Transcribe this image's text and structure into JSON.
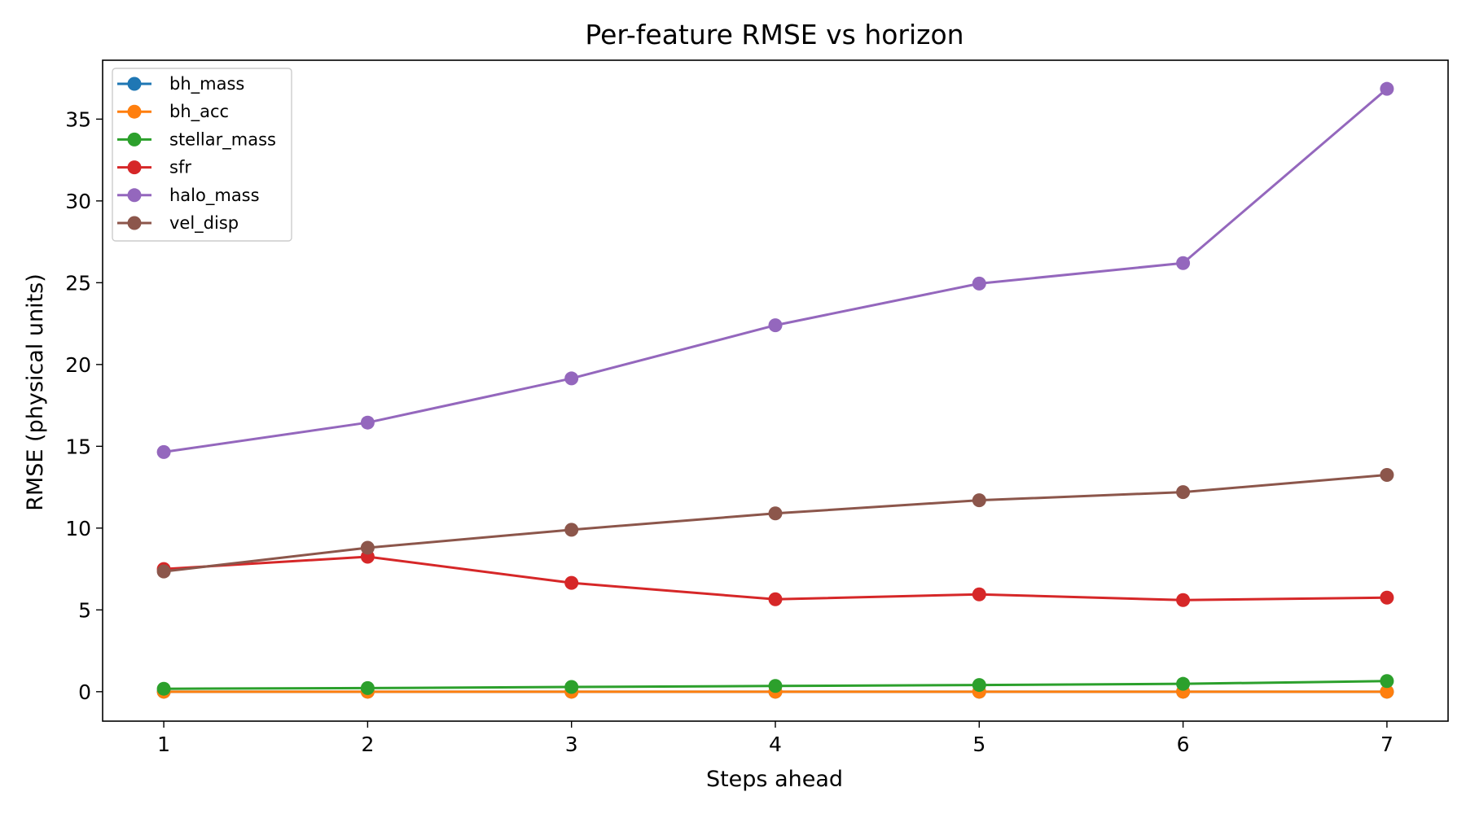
{
  "chart_data": {
    "type": "line",
    "title": "Per-feature RMSE vs horizon",
    "xlabel": "Steps ahead",
    "ylabel": "RMSE (physical units)",
    "x": [
      1,
      2,
      3,
      4,
      5,
      6,
      7
    ],
    "x_ticks": [
      1,
      2,
      3,
      4,
      5,
      6,
      7
    ],
    "y_ticks": [
      0,
      5,
      10,
      15,
      20,
      25,
      30,
      35
    ],
    "xlim": [
      0.7,
      7.3
    ],
    "ylim": [
      -1.8,
      38.6
    ],
    "grid": false,
    "legend_position": "top-left",
    "series": [
      {
        "name": "bh_mass",
        "color": "#1f77b4",
        "values": [
          0.0,
          0.0,
          0.0,
          0.0,
          0.0,
          0.0,
          0.0
        ]
      },
      {
        "name": "bh_acc",
        "color": "#ff7f0e",
        "values": [
          0.0,
          0.0,
          0.0,
          0.0,
          0.0,
          0.0,
          0.0
        ]
      },
      {
        "name": "stellar_mass",
        "color": "#2ca02c",
        "values": [
          0.18,
          0.22,
          0.29,
          0.35,
          0.41,
          0.48,
          0.65
        ]
      },
      {
        "name": "sfr",
        "color": "#d62728",
        "values": [
          7.5,
          8.25,
          6.65,
          5.65,
          5.95,
          5.6,
          5.75
        ]
      },
      {
        "name": "halo_mass",
        "color": "#9467bd",
        "values": [
          14.65,
          16.45,
          19.15,
          22.4,
          24.95,
          26.2,
          36.85
        ]
      },
      {
        "name": "vel_disp",
        "color": "#8c564b",
        "values": [
          7.35,
          8.8,
          9.9,
          10.9,
          11.7,
          12.2,
          13.25
        ]
      }
    ]
  }
}
